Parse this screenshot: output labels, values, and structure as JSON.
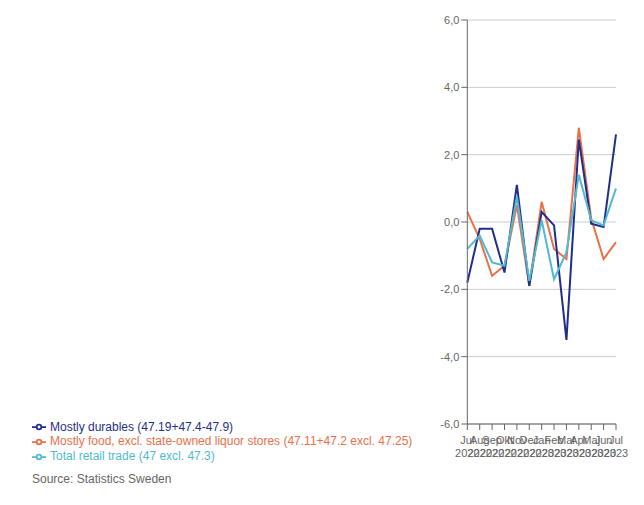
{
  "chart_data": {
    "type": "line",
    "categories": [
      "Jul\n2022",
      "Aug\n2022",
      "Sep\n2022",
      "Okt\n2022",
      "Nov\n2022",
      "Dec\n2022",
      "Jan\n2023",
      "Feb\n2023",
      "Mar\n2023",
      "Apr\n2023",
      "Maj\n2023",
      "Jun\n2023",
      "Jul\n2023"
    ],
    "series": [
      {
        "name": "Mostly food, excl. state-owned liquor stores (47.11+47.2 excl. 47.25)",
        "color": "#E8714A",
        "values": [
          0.3,
          -0.5,
          -1.6,
          -1.3,
          0.5,
          -1.9,
          0.6,
          -0.8,
          -1.1,
          2.8,
          0.1,
          -1.1,
          -0.6
        ]
      },
      {
        "name": "Mostly durables (47.19+47.4-47.9)",
        "color": "#1F2E8B",
        "values": [
          -1.8,
          -0.2,
          -0.2,
          -1.5,
          1.1,
          -1.9,
          0.3,
          -0.1,
          -3.5,
          2.45,
          -0.05,
          -0.15,
          2.6
        ]
      },
      {
        "name": "Total retail trade (47 excl. 47.3)",
        "color": "#52B9D1",
        "values": [
          -0.8,
          -0.4,
          -1.2,
          -1.3,
          0.75,
          -1.75,
          0.05,
          -1.7,
          -0.9,
          1.4,
          0.05,
          -0.1,
          1.0
        ]
      }
    ],
    "ylim": [
      -6.0,
      6.0
    ],
    "yticks": [
      {
        "value": -6.0,
        "label": "-6,0"
      },
      {
        "value": -4.0,
        "label": "-4,0"
      },
      {
        "value": -2.0,
        "label": "-2,0"
      },
      {
        "value": 0.0,
        "label": "0,0"
      },
      {
        "value": 2.0,
        "label": "2,0"
      },
      {
        "value": 4.0,
        "label": "4,0"
      },
      {
        "value": 6.0,
        "label": "6,0"
      }
    ],
    "grid": true,
    "legend": "bottom",
    "annotations": [
      "Source: Statistics Sweden"
    ]
  }
}
